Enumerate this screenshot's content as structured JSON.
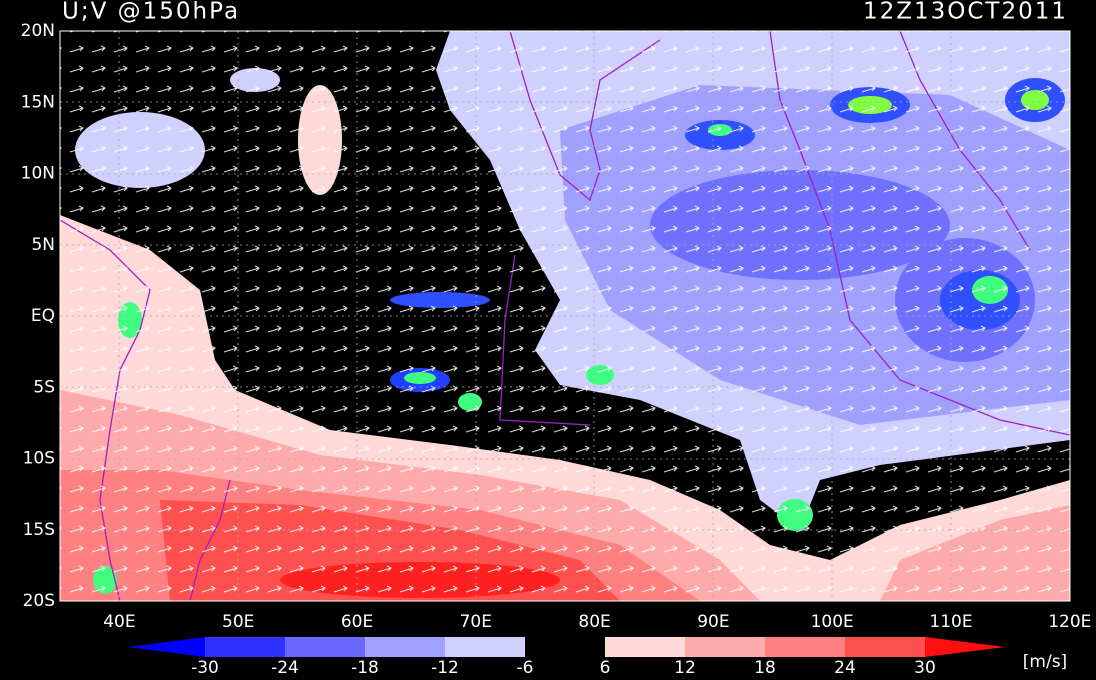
{
  "header": {
    "title": "U;V @150hPa",
    "time": "12Z13OCT2011"
  },
  "axes": {
    "lat_labels": [
      "20N",
      "15N",
      "10N",
      "5N",
      "EQ",
      "5S",
      "10S",
      "15S",
      "20S"
    ],
    "lon_labels": [
      "40E",
      "50E",
      "60E",
      "70E",
      "80E",
      "90E",
      "100E",
      "110E",
      "120E"
    ]
  },
  "colorbar": {
    "labels": [
      "-30",
      "-24",
      "-18",
      "-12",
      "-6",
      "6",
      "12",
      "18",
      "24",
      "30"
    ],
    "unit": "[m/s]"
  }
}
